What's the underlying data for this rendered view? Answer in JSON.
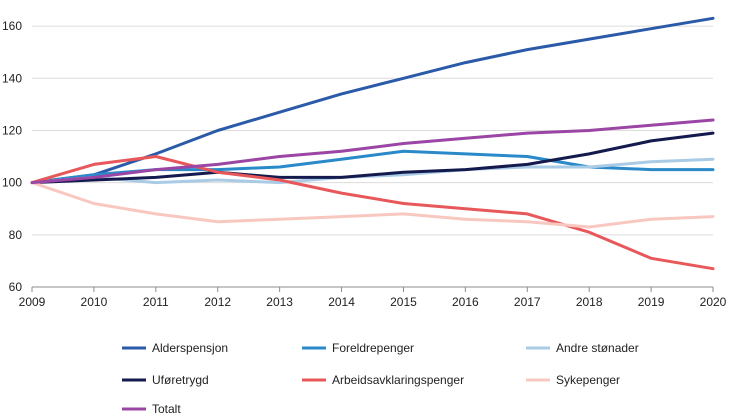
{
  "chart_data": {
    "type": "line",
    "title": "",
    "xlabel": "",
    "ylabel": "",
    "x": [
      "2009",
      "2010",
      "2011",
      "2012",
      "2013",
      "2014",
      "2015",
      "2016",
      "2017",
      "2018",
      "2019",
      "2020"
    ],
    "ylim": [
      60,
      170
    ],
    "yticks": [
      "60",
      "80",
      "100",
      "120",
      "140",
      "160"
    ],
    "grid": "horizontal",
    "legend_position": "bottom",
    "series": [
      {
        "name": "Alderspensjon",
        "color": "#2b5aa8",
        "values": [
          100,
          103,
          111,
          120,
          127,
          134,
          140,
          146,
          151,
          155,
          159,
          163
        ]
      },
      {
        "name": "Foreldrepenger",
        "color": "#2a8ac9",
        "values": [
          100,
          103,
          105,
          105,
          106,
          109,
          112,
          111,
          110,
          106,
          105,
          105
        ]
      },
      {
        "name": "Andre stønader",
        "color": "#aacbe6",
        "values": [
          100,
          102,
          100,
          101,
          100,
          102,
          103,
          105,
          106,
          106,
          108,
          109
        ]
      },
      {
        "name": "Uføretrygd",
        "color": "#141a4d",
        "values": [
          100,
          101,
          102,
          104,
          102,
          102,
          104,
          105,
          107,
          111,
          116,
          119
        ]
      },
      {
        "name": "Arbeidsavklaringspenger",
        "color": "#e8575a",
        "values": [
          100,
          107,
          110,
          104,
          101,
          96,
          92,
          90,
          88,
          81,
          71,
          67
        ]
      },
      {
        "name": "Sykepenger",
        "color": "#f8c8c0",
        "values": [
          100,
          92,
          88,
          85,
          86,
          87,
          88,
          86,
          85,
          83,
          86,
          87
        ]
      },
      {
        "name": "Totalt",
        "color": "#9b45a5",
        "values": [
          100,
          102,
          105,
          107,
          110,
          112,
          115,
          117,
          119,
          120,
          122,
          124
        ]
      }
    ]
  }
}
